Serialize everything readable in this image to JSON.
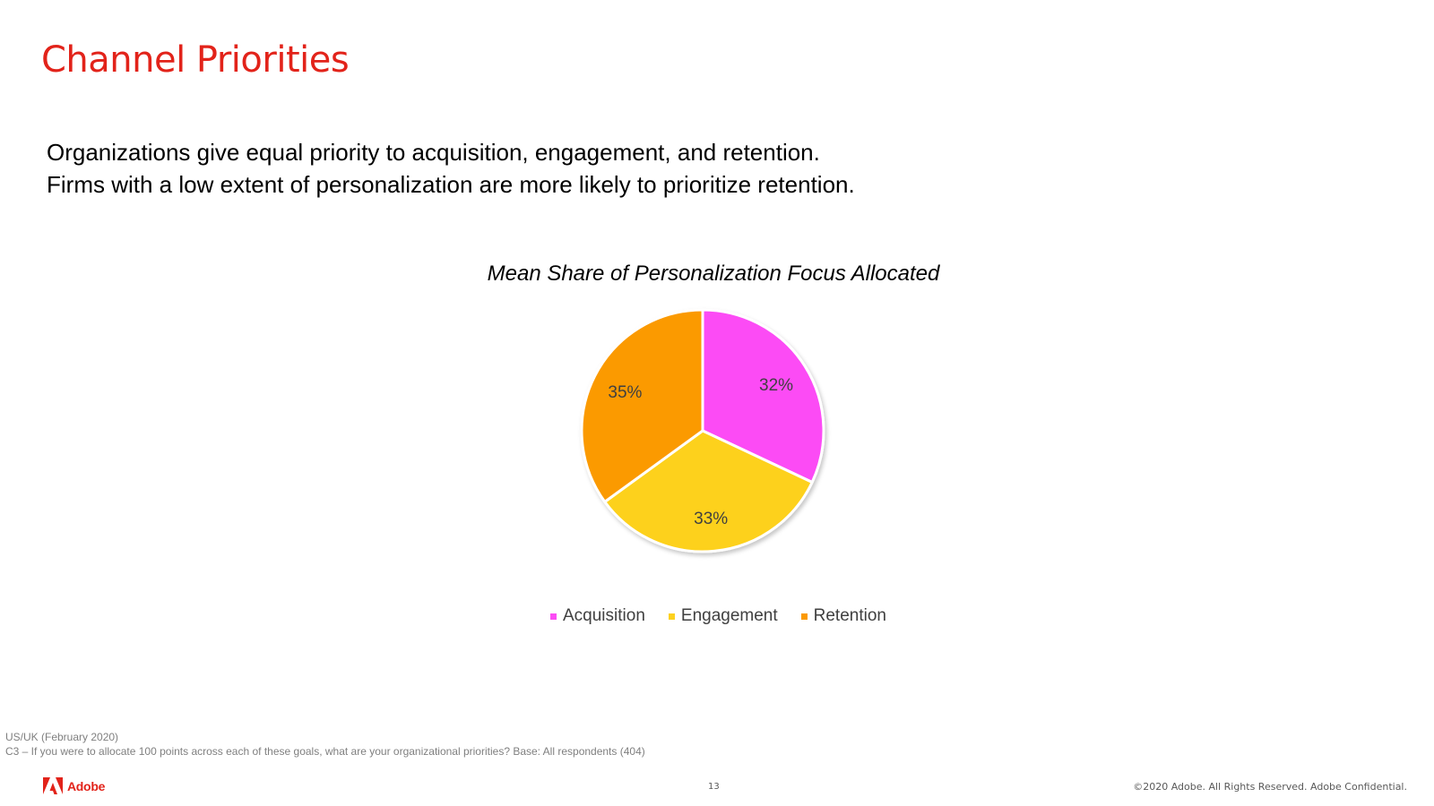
{
  "slide": {
    "title": "Channel Priorities",
    "subtitle_lines": [
      "Organizations give equal priority to acquisition, engagement, and retention.",
      "Firms with a low extent of personalization are more likely to prioritize retention."
    ]
  },
  "chart_data": {
    "type": "pie",
    "title": "Mean Share of Personalization Focus Allocated",
    "categories": [
      "Acquisition",
      "Engagement",
      "Retention"
    ],
    "values": [
      32,
      33,
      35
    ],
    "labels": [
      "32%",
      "33%",
      "35%"
    ],
    "colors": [
      "#fc4cf5",
      "#fdd11f",
      "#fb9a00"
    ],
    "legend_position": "bottom"
  },
  "footnote": {
    "line1": "US/UK (February 2020)",
    "line2": "C3 –  If you were to allocate 100 points across each of these goals, what are your organizational priorities? Base: All respondents (404)"
  },
  "footer": {
    "logo_text": "Adobe",
    "page_number": "13",
    "copyright": "©2020 Adobe. All Rights Reserved. Adobe Confidential."
  },
  "brand_color": "#e2231a"
}
